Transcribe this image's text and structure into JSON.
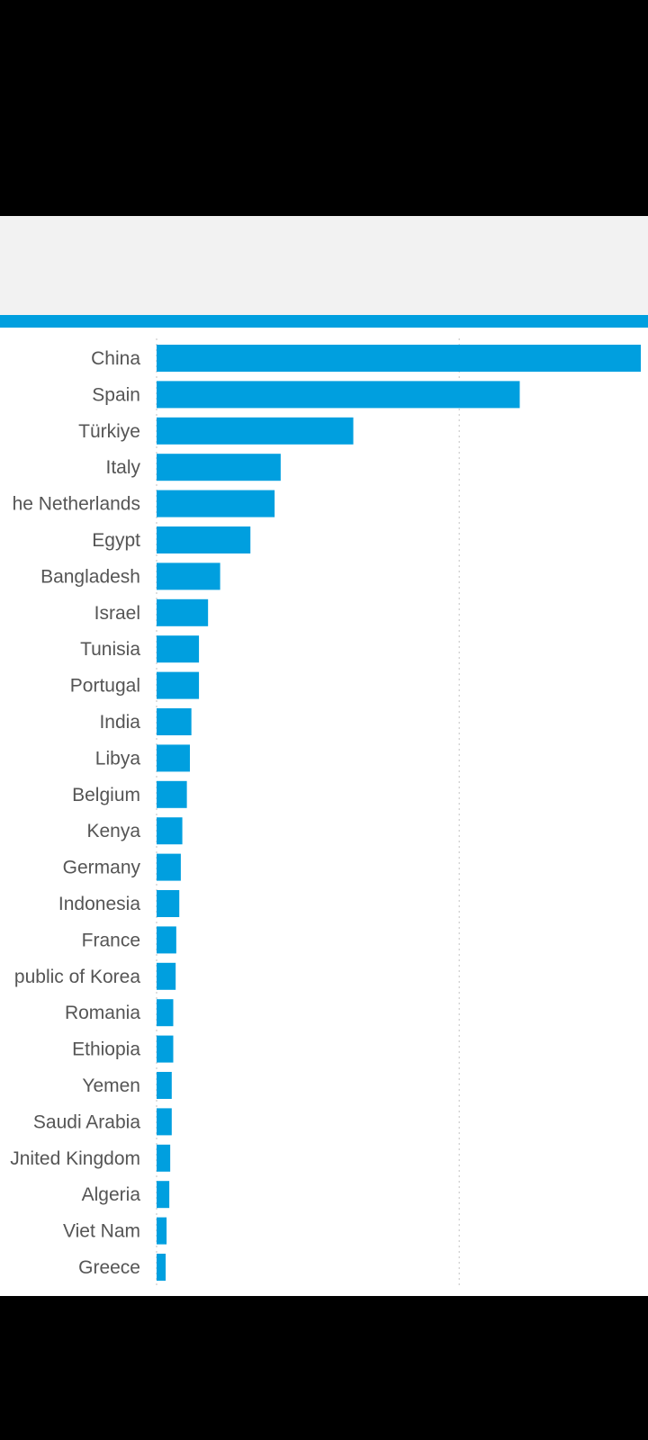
{
  "colors": {
    "bar": "#009fdf",
    "accent_rule": "#009fdf",
    "gridline": "#cccccc",
    "label": "#555555",
    "header_band": "#f2f2f2"
  },
  "chart_data": {
    "type": "bar",
    "orientation": "horizontal",
    "categories": [
      "China",
      "Spain",
      "Türkiye",
      "Italy",
      "he Netherlands",
      "Egypt",
      "Bangladesh",
      "Israel",
      "Tunisia",
      "Portugal",
      "India",
      "Libya",
      "Belgium",
      "Kenya",
      "Germany",
      "Indonesia",
      "France",
      "public of Korea",
      "Romania",
      "Ethiopia",
      "Yemen",
      "Saudi Arabia",
      "Jnited Kingdom",
      "Algeria",
      "Viet Nam",
      "Greece"
    ],
    "values": [
      1.6,
      1.2,
      0.65,
      0.41,
      0.39,
      0.31,
      0.21,
      0.17,
      0.14,
      0.14,
      0.115,
      0.11,
      0.1,
      0.085,
      0.08,
      0.075,
      0.065,
      0.063,
      0.055,
      0.055,
      0.05,
      0.05,
      0.045,
      0.042,
      0.033,
      0.03
    ],
    "xlim": [
      0,
      1.6
    ],
    "gridlines": [
      0,
      1
    ],
    "grid": true,
    "legend": "none",
    "title": "",
    "xlabel": "",
    "ylabel": ""
  }
}
